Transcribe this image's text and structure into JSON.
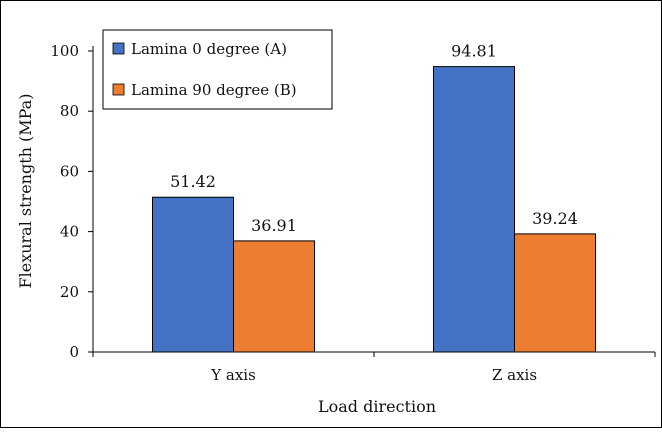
{
  "chart_data": {
    "type": "bar",
    "title": "",
    "xlabel": "Load direction",
    "ylabel": "Flexural strength (MPa)",
    "ylim": [
      0,
      100
    ],
    "yticks": [
      0,
      20,
      40,
      60,
      80,
      100
    ],
    "categories": [
      "Y axis",
      "Z axis"
    ],
    "series": [
      {
        "name": "Lamina 0 degree (A)",
        "color": "#4472c4",
        "values": [
          51.42,
          94.81
        ],
        "labels": [
          "51.42",
          "94.81"
        ]
      },
      {
        "name": "Lamina 90 degree (B)",
        "color": "#ed7d31",
        "values": [
          36.91,
          39.24
        ],
        "labels": [
          "36.91",
          "39.24"
        ]
      }
    ],
    "grid": false,
    "legend": "top-left"
  }
}
